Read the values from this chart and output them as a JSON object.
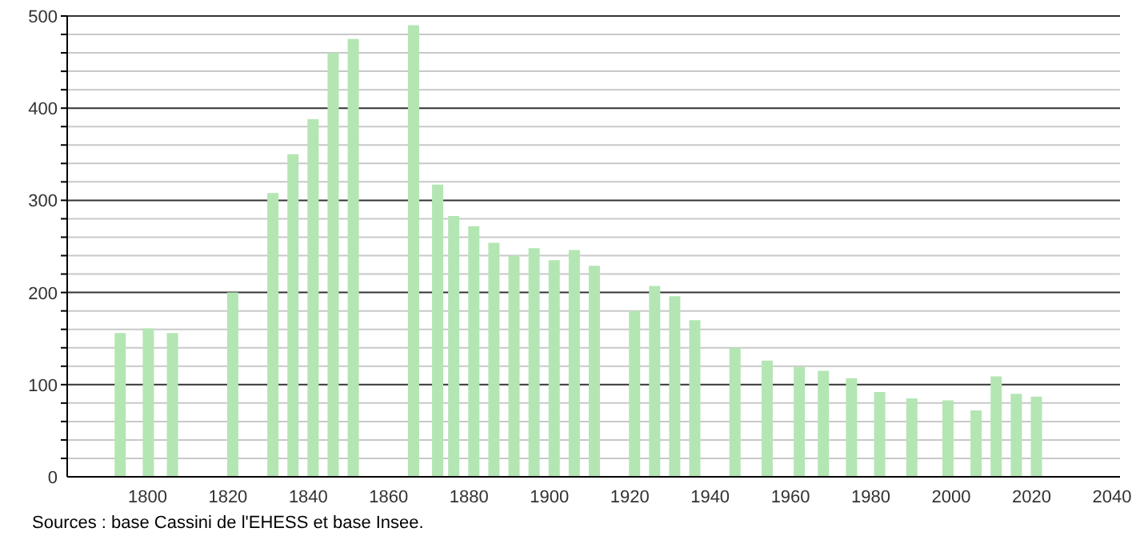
{
  "chart_data": {
    "type": "bar",
    "x": [
      1793,
      1800,
      1806,
      1821,
      1831,
      1836,
      1841,
      1846,
      1851,
      1866,
      1872,
      1876,
      1881,
      1886,
      1891,
      1896,
      1901,
      1906,
      1911,
      1921,
      1926,
      1931,
      1936,
      1946,
      1954,
      1962,
      1968,
      1975,
      1982,
      1990,
      1999,
      2006,
      2011,
      2016,
      2021
    ],
    "values": [
      156,
      161,
      156,
      200,
      308,
      350,
      388,
      460,
      475,
      490,
      317,
      283,
      272,
      254,
      240,
      248,
      235,
      246,
      229,
      180,
      207,
      196,
      170,
      140,
      126,
      119,
      115,
      107,
      92,
      85,
      83,
      72,
      109,
      90,
      87
    ],
    "color": "#b3e6b3",
    "xlim": [
      1780,
      2042
    ],
    "xticks": [
      1800,
      1820,
      1840,
      1860,
      1880,
      1900,
      1920,
      1940,
      1960,
      1980,
      2000,
      2020,
      2040
    ],
    "ylim": [
      0,
      500
    ],
    "yticks": [
      0,
      {
        "value": 20,
        "label": null
      },
      {
        "value": 40,
        "label": null
      },
      {
        "value": 60,
        "label": null
      },
      {
        "value": 80,
        "label": null
      },
      100,
      {
        "value": 120,
        "label": null
      },
      {
        "value": 140,
        "label": null
      },
      {
        "value": 160,
        "label": null
      },
      {
        "value": 180,
        "label": null
      },
      200,
      {
        "value": 220,
        "label": null
      },
      {
        "value": 240,
        "label": null
      },
      {
        "value": 260,
        "label": null
      },
      {
        "value": 280,
        "label": null
      },
      300,
      {
        "value": 320,
        "label": null
      },
      {
        "value": 340,
        "label": null
      },
      {
        "value": 360,
        "label": null
      },
      {
        "value": 380,
        "label": null
      },
      400,
      {
        "value": 420,
        "label": null
      },
      {
        "value": 440,
        "label": null
      },
      {
        "value": 460,
        "label": null
      },
      {
        "value": 480,
        "label": null
      },
      500
    ],
    "grid": "y",
    "annotations": [
      "Sources : base Cassini de l'EHESS et base Insee."
    ]
  }
}
